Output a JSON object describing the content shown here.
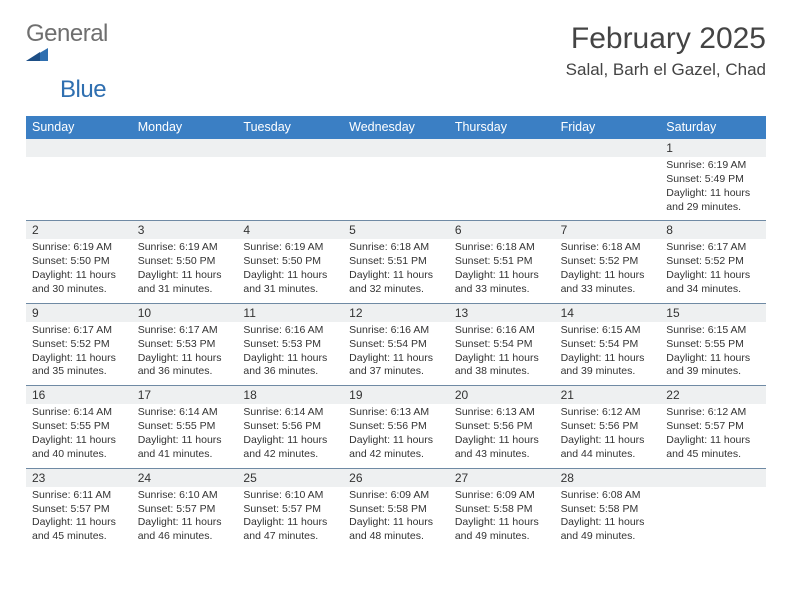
{
  "brand": {
    "text1": "General",
    "text2": "Blue",
    "color1": "#6f6f6f",
    "color2": "#2f6fb0"
  },
  "title": "February 2025",
  "subtitle": "Salal, Barh el Gazel, Chad",
  "header_bg": "#3b7fc4",
  "header_fg": "#ffffff",
  "daynum_bg": "#eef0f1",
  "week_border": "#6f8aa4",
  "day_names": [
    "Sunday",
    "Monday",
    "Tuesday",
    "Wednesday",
    "Thursday",
    "Friday",
    "Saturday"
  ],
  "weeks": [
    [
      {
        "n": "",
        "sr": "",
        "ss": "",
        "dl": ""
      },
      {
        "n": "",
        "sr": "",
        "ss": "",
        "dl": ""
      },
      {
        "n": "",
        "sr": "",
        "ss": "",
        "dl": ""
      },
      {
        "n": "",
        "sr": "",
        "ss": "",
        "dl": ""
      },
      {
        "n": "",
        "sr": "",
        "ss": "",
        "dl": ""
      },
      {
        "n": "",
        "sr": "",
        "ss": "",
        "dl": ""
      },
      {
        "n": "1",
        "sr": "Sunrise: 6:19 AM",
        "ss": "Sunset: 5:49 PM",
        "dl": "Daylight: 11 hours and 29 minutes."
      }
    ],
    [
      {
        "n": "2",
        "sr": "Sunrise: 6:19 AM",
        "ss": "Sunset: 5:50 PM",
        "dl": "Daylight: 11 hours and 30 minutes."
      },
      {
        "n": "3",
        "sr": "Sunrise: 6:19 AM",
        "ss": "Sunset: 5:50 PM",
        "dl": "Daylight: 11 hours and 31 minutes."
      },
      {
        "n": "4",
        "sr": "Sunrise: 6:19 AM",
        "ss": "Sunset: 5:50 PM",
        "dl": "Daylight: 11 hours and 31 minutes."
      },
      {
        "n": "5",
        "sr": "Sunrise: 6:18 AM",
        "ss": "Sunset: 5:51 PM",
        "dl": "Daylight: 11 hours and 32 minutes."
      },
      {
        "n": "6",
        "sr": "Sunrise: 6:18 AM",
        "ss": "Sunset: 5:51 PM",
        "dl": "Daylight: 11 hours and 33 minutes."
      },
      {
        "n": "7",
        "sr": "Sunrise: 6:18 AM",
        "ss": "Sunset: 5:52 PM",
        "dl": "Daylight: 11 hours and 33 minutes."
      },
      {
        "n": "8",
        "sr": "Sunrise: 6:17 AM",
        "ss": "Sunset: 5:52 PM",
        "dl": "Daylight: 11 hours and 34 minutes."
      }
    ],
    [
      {
        "n": "9",
        "sr": "Sunrise: 6:17 AM",
        "ss": "Sunset: 5:52 PM",
        "dl": "Daylight: 11 hours and 35 minutes."
      },
      {
        "n": "10",
        "sr": "Sunrise: 6:17 AM",
        "ss": "Sunset: 5:53 PM",
        "dl": "Daylight: 11 hours and 36 minutes."
      },
      {
        "n": "11",
        "sr": "Sunrise: 6:16 AM",
        "ss": "Sunset: 5:53 PM",
        "dl": "Daylight: 11 hours and 36 minutes."
      },
      {
        "n": "12",
        "sr": "Sunrise: 6:16 AM",
        "ss": "Sunset: 5:54 PM",
        "dl": "Daylight: 11 hours and 37 minutes."
      },
      {
        "n": "13",
        "sr": "Sunrise: 6:16 AM",
        "ss": "Sunset: 5:54 PM",
        "dl": "Daylight: 11 hours and 38 minutes."
      },
      {
        "n": "14",
        "sr": "Sunrise: 6:15 AM",
        "ss": "Sunset: 5:54 PM",
        "dl": "Daylight: 11 hours and 39 minutes."
      },
      {
        "n": "15",
        "sr": "Sunrise: 6:15 AM",
        "ss": "Sunset: 5:55 PM",
        "dl": "Daylight: 11 hours and 39 minutes."
      }
    ],
    [
      {
        "n": "16",
        "sr": "Sunrise: 6:14 AM",
        "ss": "Sunset: 5:55 PM",
        "dl": "Daylight: 11 hours and 40 minutes."
      },
      {
        "n": "17",
        "sr": "Sunrise: 6:14 AM",
        "ss": "Sunset: 5:55 PM",
        "dl": "Daylight: 11 hours and 41 minutes."
      },
      {
        "n": "18",
        "sr": "Sunrise: 6:14 AM",
        "ss": "Sunset: 5:56 PM",
        "dl": "Daylight: 11 hours and 42 minutes."
      },
      {
        "n": "19",
        "sr": "Sunrise: 6:13 AM",
        "ss": "Sunset: 5:56 PM",
        "dl": "Daylight: 11 hours and 42 minutes."
      },
      {
        "n": "20",
        "sr": "Sunrise: 6:13 AM",
        "ss": "Sunset: 5:56 PM",
        "dl": "Daylight: 11 hours and 43 minutes."
      },
      {
        "n": "21",
        "sr": "Sunrise: 6:12 AM",
        "ss": "Sunset: 5:56 PM",
        "dl": "Daylight: 11 hours and 44 minutes."
      },
      {
        "n": "22",
        "sr": "Sunrise: 6:12 AM",
        "ss": "Sunset: 5:57 PM",
        "dl": "Daylight: 11 hours and 45 minutes."
      }
    ],
    [
      {
        "n": "23",
        "sr": "Sunrise: 6:11 AM",
        "ss": "Sunset: 5:57 PM",
        "dl": "Daylight: 11 hours and 45 minutes."
      },
      {
        "n": "24",
        "sr": "Sunrise: 6:10 AM",
        "ss": "Sunset: 5:57 PM",
        "dl": "Daylight: 11 hours and 46 minutes."
      },
      {
        "n": "25",
        "sr": "Sunrise: 6:10 AM",
        "ss": "Sunset: 5:57 PM",
        "dl": "Daylight: 11 hours and 47 minutes."
      },
      {
        "n": "26",
        "sr": "Sunrise: 6:09 AM",
        "ss": "Sunset: 5:58 PM",
        "dl": "Daylight: 11 hours and 48 minutes."
      },
      {
        "n": "27",
        "sr": "Sunrise: 6:09 AM",
        "ss": "Sunset: 5:58 PM",
        "dl": "Daylight: 11 hours and 49 minutes."
      },
      {
        "n": "28",
        "sr": "Sunrise: 6:08 AM",
        "ss": "Sunset: 5:58 PM",
        "dl": "Daylight: 11 hours and 49 minutes."
      },
      {
        "n": "",
        "sr": "",
        "ss": "",
        "dl": ""
      }
    ]
  ]
}
